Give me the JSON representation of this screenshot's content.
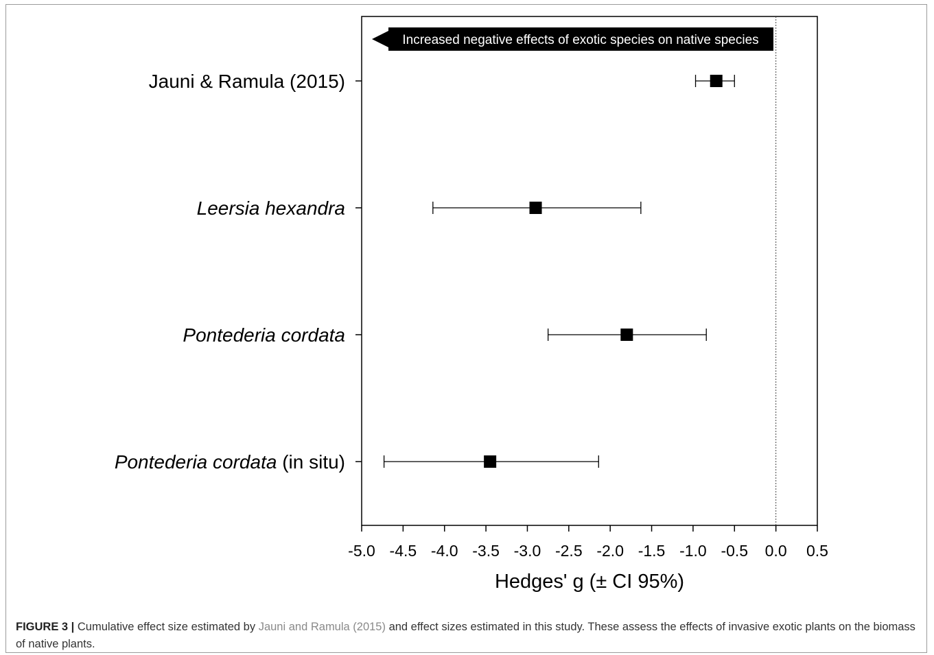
{
  "chart_data": {
    "type": "forest",
    "title": "",
    "xlabel": "Hedges' g (± CI 95%)",
    "ylabel": "",
    "xlim": [
      -5.0,
      0.5
    ],
    "xticks": [
      "-5.0",
      "-4.5",
      "-4.0",
      "-3.5",
      "-3.0",
      "-2.5",
      "-2.0",
      "-1.5",
      "-1.0",
      "-0.5",
      "0.0",
      "0.5"
    ],
    "reference_line": 0.0,
    "annotation": "Increased negative effects of exotic species on native species",
    "categories": [
      {
        "name": "Jauni & Ramula (2015)",
        "italic": "",
        "suffix": "Jauni & Ramula (2015)"
      },
      {
        "name": "Leersia hexandra",
        "italic": "Leersia hexandra",
        "suffix": ""
      },
      {
        "name": "Pontederia cordata",
        "italic": "Pontederia cordata",
        "suffix": ""
      },
      {
        "name": "Pontederia cordata (in situ)",
        "italic": "Pontederia cordata",
        "suffix": " (in situ)"
      }
    ],
    "estimates": [
      -0.72,
      -2.9,
      -1.8,
      -3.45
    ],
    "ci_lower": [
      -0.97,
      -4.14,
      -2.75,
      -4.73
    ],
    "ci_upper": [
      -0.5,
      -1.63,
      -0.84,
      -2.14
    ],
    "marker_color": "#000000"
  },
  "caption": {
    "label": "FIGURE 3 |",
    "text_before": " Cumulative effect size estimated by ",
    "reference": "Jauni and Ramula (2015)",
    "text_after": " and effect sizes estimated in this study. These assess the effects of invasive exotic plants on the biomass of native plants."
  }
}
